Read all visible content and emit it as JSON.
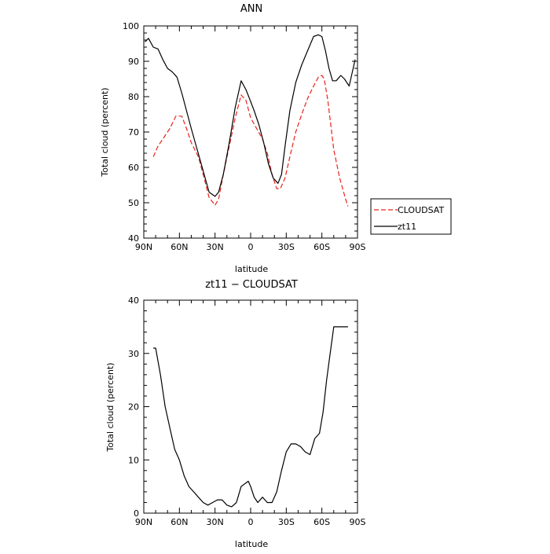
{
  "chart_data": [
    {
      "type": "line",
      "title": "ANN",
      "xlabel": "latitude",
      "ylabel": "Total cloud (percent)",
      "xlim": [
        90,
        -90
      ],
      "ylim": [
        40,
        100
      ],
      "xticks": [
        90,
        60,
        30,
        0,
        -30,
        -60,
        -90
      ],
      "xticklabels": [
        "90N",
        "60N",
        "30N",
        "0",
        "30S",
        "60S",
        "90S"
      ],
      "yticks": [
        40,
        50,
        60,
        70,
        80,
        90,
        100
      ],
      "yticklabels": [
        "40",
        "50",
        "60",
        "70",
        "80",
        "90",
        "100"
      ],
      "grid": false,
      "legend": "right",
      "series": [
        {
          "name": "CLOUDSAT",
          "color": "#e8231c",
          "dash": "dashed",
          "x": [
            82,
            78,
            74,
            68,
            63,
            58,
            54,
            50,
            44,
            40,
            35,
            30,
            27,
            23,
            18,
            13,
            8,
            4,
            0,
            -5,
            -10,
            -14,
            -18,
            -22,
            -25,
            -29,
            -33,
            -38,
            -43,
            -48,
            -53,
            -57,
            -60,
            -62,
            -65,
            -70,
            -75,
            -80,
            -82
          ],
          "y": [
            63,
            66,
            68,
            71,
            74.5,
            74.5,
            71,
            67,
            63,
            58,
            51.5,
            49.3,
            51,
            58,
            66,
            74,
            80.5,
            79,
            74,
            71,
            68,
            64,
            58,
            54,
            54,
            57,
            63,
            70,
            75,
            79.5,
            83,
            85.5,
            86,
            85,
            79,
            65,
            57,
            51,
            49
          ]
        },
        {
          "name": "zt11",
          "color": "#000000",
          "dash": "solid",
          "x": [
            89,
            86,
            82,
            78,
            74,
            70,
            66,
            62,
            58,
            54,
            50,
            45,
            40,
            35,
            30,
            27,
            23,
            18,
            13,
            8,
            4,
            1,
            -3,
            -7,
            -11,
            -15,
            -19,
            -23,
            -26,
            -29,
            -33,
            -38,
            -43,
            -48,
            -53,
            -57,
            -60,
            -63,
            -66,
            -69,
            -72,
            -76,
            -79,
            -83,
            -88
          ],
          "y": [
            95.5,
            96.5,
            94,
            93.5,
            90.5,
            88,
            87,
            85.5,
            81,
            76,
            71,
            65,
            59,
            53,
            51.8,
            53,
            58,
            67,
            77,
            84.5,
            82,
            79.5,
            76,
            72,
            67,
            61,
            57,
            55.5,
            58,
            66,
            76,
            84,
            89,
            93,
            97,
            97.5,
            97,
            93,
            88,
            84.5,
            84.5,
            86,
            85,
            83,
            90.5
          ]
        }
      ]
    },
    {
      "type": "line",
      "title": "zt11 − CLOUDSAT",
      "xlabel": "latitude",
      "ylabel": "Total cloud (percent)",
      "xlim": [
        90,
        -90
      ],
      "ylim": [
        0,
        40
      ],
      "xticks": [
        90,
        60,
        30,
        0,
        -30,
        -60,
        -90
      ],
      "xticklabels": [
        "90N",
        "60N",
        "30N",
        "0",
        "30S",
        "60S",
        "90S"
      ],
      "yticks": [
        0,
        10,
        20,
        30,
        40
      ],
      "yticklabels": [
        "0",
        "10",
        "20",
        "30",
        "40"
      ],
      "grid": false,
      "series": [
        {
          "color": "#000000",
          "dash": "solid",
          "x": [
            82,
            80,
            76,
            72,
            68,
            64,
            60,
            56,
            52,
            48,
            44,
            40,
            36,
            32,
            28,
            24,
            20,
            16,
            12,
            8,
            5,
            2,
            0,
            -3,
            -6,
            -10,
            -14,
            -18,
            -22,
            -26,
            -30,
            -34,
            -38,
            -42,
            -46,
            -50,
            -54,
            -58,
            -61,
            -64,
            -67,
            -70,
            -73,
            -76,
            -79,
            -82
          ],
          "y": [
            31,
            31,
            26,
            20,
            16,
            12,
            10,
            7,
            5,
            4,
            3,
            2,
            1.5,
            2,
            2.5,
            2.5,
            1.5,
            1.2,
            2,
            5,
            5.5,
            6,
            5,
            3,
            2,
            3,
            2,
            2,
            4,
            8,
            11.5,
            13,
            13,
            12.5,
            11.5,
            11,
            14,
            15,
            19,
            25,
            30,
            35,
            35,
            35,
            35,
            35
          ]
        }
      ]
    }
  ]
}
